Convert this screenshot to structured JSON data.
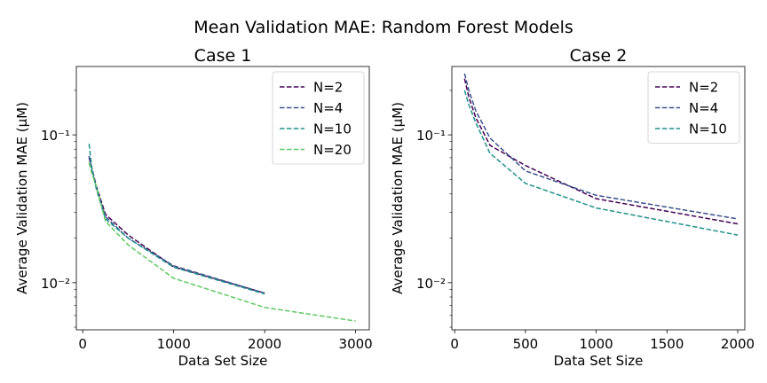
{
  "suptitle": "Mean Validation MAE: Random Forest Models",
  "chart_data": [
    {
      "type": "line",
      "title": "Case 1",
      "xlabel": "Data Set Size",
      "ylabel": "Average Validation MAE (μM)",
      "yscale": "log",
      "xlim": [
        -70,
        3150
      ],
      "ylim": [
        0.0048,
        0.29
      ],
      "xticks": [
        0,
        1000,
        2000,
        3000
      ],
      "yticks": [
        0.01,
        0.1
      ],
      "ytick_labels": [
        "10⁻²",
        "10⁻¹"
      ],
      "grid": false,
      "legend_position": "top-right",
      "series": [
        {
          "name": "N=2",
          "color": "#440154",
          "x": [
            70,
            100,
            150,
            250,
            500,
            1000,
            2000
          ],
          "y": [
            0.07,
            0.06,
            0.045,
            0.029,
            0.021,
            0.0128,
            0.0085
          ]
        },
        {
          "name": "N=4",
          "color": "#3b528b",
          "x": [
            70,
            100,
            150,
            250,
            500,
            1000,
            2000
          ],
          "y": [
            0.072,
            0.058,
            0.044,
            0.028,
            0.02,
            0.013,
            0.0085
          ]
        },
        {
          "name": "N=10",
          "color": "#21918c",
          "x": [
            70,
            100,
            150,
            250,
            500,
            1000,
            2000
          ],
          "y": [
            0.087,
            0.06,
            0.043,
            0.027,
            0.02,
            0.0127,
            0.0084
          ]
        },
        {
          "name": "N=20",
          "color": "#5ec962",
          "x": [
            70,
            100,
            150,
            250,
            500,
            1000,
            2000,
            3000
          ],
          "y": [
            0.065,
            0.055,
            0.045,
            0.026,
            0.018,
            0.0107,
            0.0068,
            0.0055
          ]
        }
      ]
    },
    {
      "type": "line",
      "title": "Case 2",
      "xlabel": "Data Set Size",
      "ylabel": "Average Validation MAE (μM)",
      "yscale": "log",
      "xlim": [
        -20,
        2050
      ],
      "ylim": [
        0.0048,
        0.29
      ],
      "xticks": [
        0,
        500,
        1000,
        1500,
        2000
      ],
      "yticks": [
        0.01,
        0.1
      ],
      "ytick_labels": [
        "10⁻²",
        "10⁻¹"
      ],
      "grid": false,
      "legend_position": "top-right",
      "series": [
        {
          "name": "N=2",
          "color": "#440154",
          "x": [
            70,
            100,
            150,
            250,
            500,
            1000,
            2000
          ],
          "y": [
            0.24,
            0.18,
            0.13,
            0.085,
            0.062,
            0.037,
            0.025
          ]
        },
        {
          "name": "N=4",
          "color": "#3b528b",
          "x": [
            70,
            100,
            150,
            250,
            500,
            1000,
            2000
          ],
          "y": [
            0.26,
            0.2,
            0.145,
            0.095,
            0.057,
            0.039,
            0.027
          ]
        },
        {
          "name": "N=10",
          "color": "#21918c",
          "x": [
            70,
            100,
            150,
            250,
            500,
            1000,
            2000
          ],
          "y": [
            0.2,
            0.16,
            0.12,
            0.075,
            0.047,
            0.032,
            0.021
          ]
        }
      ]
    }
  ]
}
